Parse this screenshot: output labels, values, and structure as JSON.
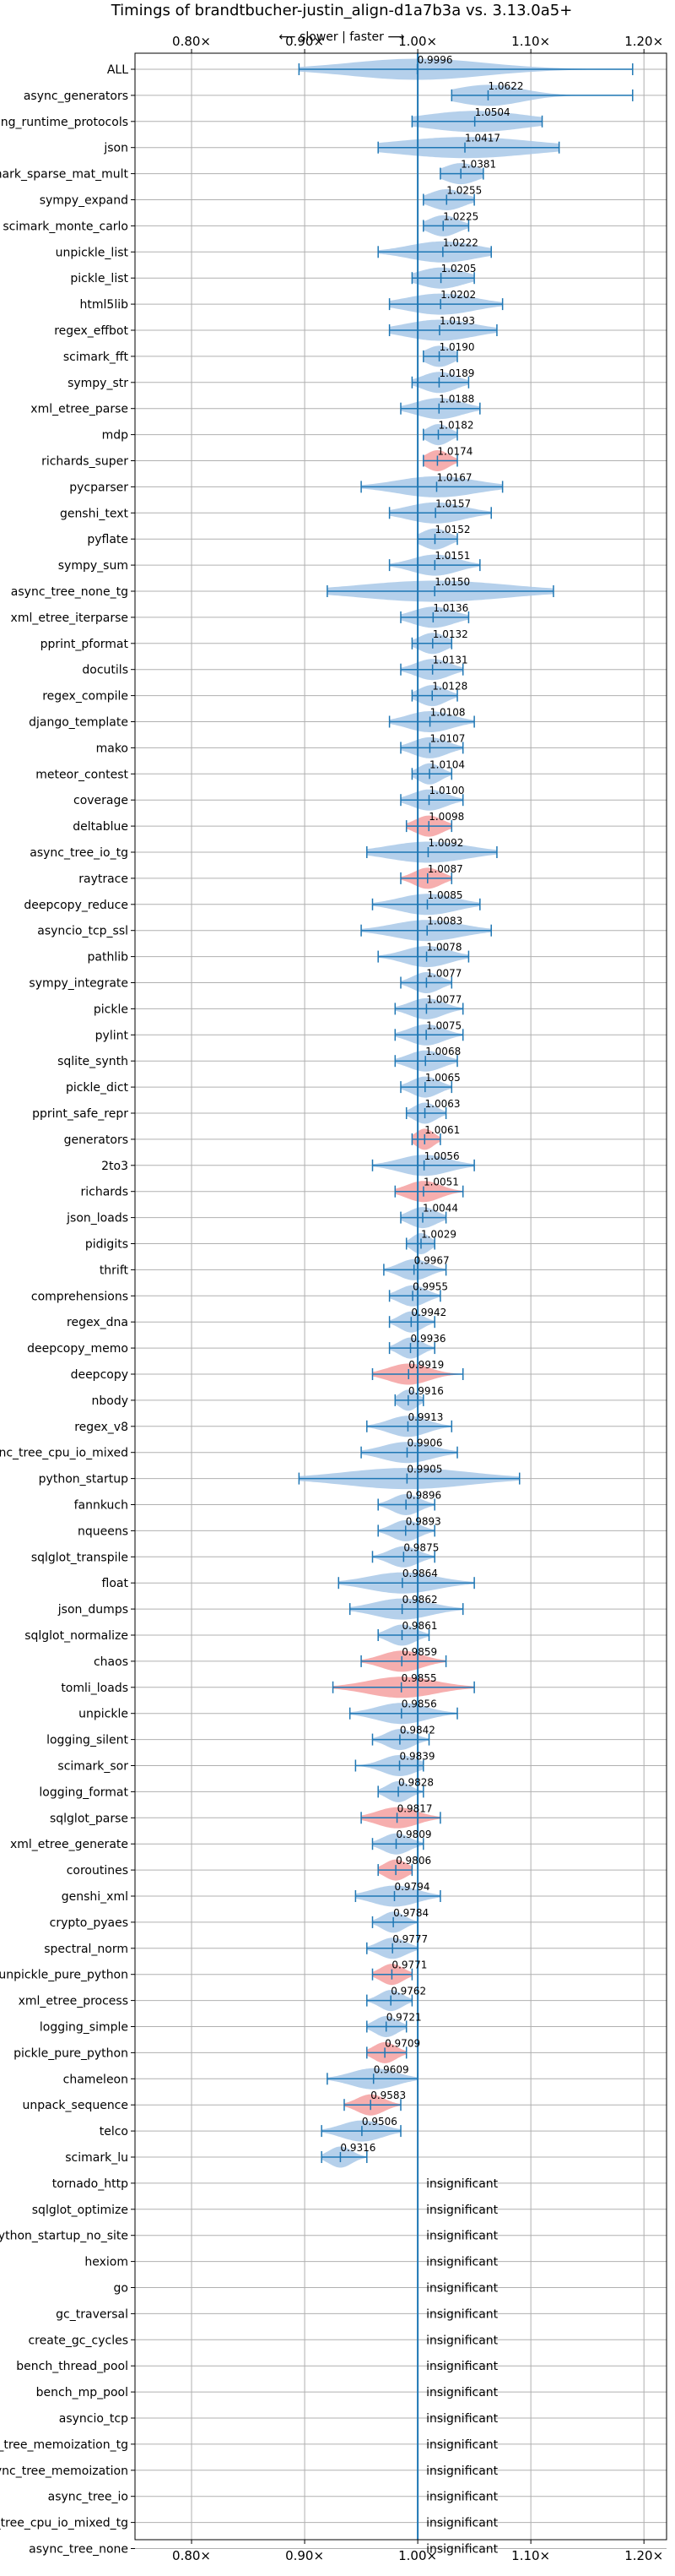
{
  "chart_data": {
    "type": "violin",
    "orientation": "horizontal",
    "title": "Timings of brandtbucher-justin_align-d1a7b3a vs. 3.13.0a5+",
    "subtitle": "⟵ slower | faster ⟶",
    "xlim": [
      0.75,
      1.22
    ],
    "xticks": [
      "0.80×",
      "0.90×",
      "1.00×",
      "1.10×",
      "1.20×"
    ],
    "xtick_values": [
      0.8,
      0.9,
      1.0,
      1.1,
      1.2
    ],
    "grid": true,
    "colors": {
      "normal": "#a8c8e8",
      "significant_slowdown": "#f4a0a0",
      "whisker": "#1f77b4",
      "reference_line": "#1f77b4",
      "grid": "#b0b0b0"
    },
    "insignificant_label": "insignificant",
    "benchmarks": [
      {
        "name": "ALL",
        "value": "0.9996",
        "mean": 0.9996,
        "min": 0.895,
        "max": 1.19,
        "spread": 0.06,
        "color": "normal"
      },
      {
        "name": "async_generators",
        "value": "1.0622",
        "mean": 1.0622,
        "min": 1.03,
        "max": 1.19,
        "spread": 0.03,
        "color": "normal"
      },
      {
        "name": "typing_runtime_protocols",
        "value": "1.0504",
        "mean": 1.0504,
        "min": 0.995,
        "max": 1.11,
        "spread": 0.045,
        "color": "normal"
      },
      {
        "name": "json",
        "value": "1.0417",
        "mean": 1.0417,
        "min": 0.965,
        "max": 1.125,
        "spread": 0.06,
        "color": "normal"
      },
      {
        "name": "scimark_sparse_mat_mult",
        "value": "1.0381",
        "mean": 1.0381,
        "min": 1.02,
        "max": 1.058,
        "spread": 0.015,
        "color": "normal"
      },
      {
        "name": "sympy_expand",
        "value": "1.0255",
        "mean": 1.0255,
        "min": 1.005,
        "max": 1.05,
        "spread": 0.015,
        "color": "normal"
      },
      {
        "name": "scimark_monte_carlo",
        "value": "1.0225",
        "mean": 1.0225,
        "min": 1.005,
        "max": 1.045,
        "spread": 0.013,
        "color": "normal"
      },
      {
        "name": "unpickle_list",
        "value": "1.0222",
        "mean": 1.0222,
        "min": 0.965,
        "max": 1.065,
        "spread": 0.03,
        "color": "normal"
      },
      {
        "name": "pickle_list",
        "value": "1.0205",
        "mean": 1.0205,
        "min": 0.995,
        "max": 1.05,
        "spread": 0.02,
        "color": "normal"
      },
      {
        "name": "html5lib",
        "value": "1.0202",
        "mean": 1.0202,
        "min": 0.975,
        "max": 1.075,
        "spread": 0.03,
        "color": "normal"
      },
      {
        "name": "regex_effbot",
        "value": "1.0193",
        "mean": 1.0193,
        "min": 0.975,
        "max": 1.07,
        "spread": 0.03,
        "color": "normal"
      },
      {
        "name": "scimark_fft",
        "value": "1.0190",
        "mean": 1.019,
        "min": 1.005,
        "max": 1.035,
        "spread": 0.012,
        "color": "normal"
      },
      {
        "name": "sympy_str",
        "value": "1.0189",
        "mean": 1.0189,
        "min": 0.995,
        "max": 1.045,
        "spread": 0.015,
        "color": "normal"
      },
      {
        "name": "xml_etree_parse",
        "value": "1.0188",
        "mean": 1.0188,
        "min": 0.985,
        "max": 1.055,
        "spread": 0.02,
        "color": "normal"
      },
      {
        "name": "mdp",
        "value": "1.0182",
        "mean": 1.0182,
        "min": 1.005,
        "max": 1.035,
        "spread": 0.01,
        "color": "normal"
      },
      {
        "name": "richards_super",
        "value": "1.0174",
        "mean": 1.0174,
        "min": 1.005,
        "max": 1.035,
        "spread": 0.01,
        "color": "significant_slowdown"
      },
      {
        "name": "pycparser",
        "value": "1.0167",
        "mean": 1.0167,
        "min": 0.95,
        "max": 1.075,
        "spread": 0.035,
        "color": "normal"
      },
      {
        "name": "genshi_text",
        "value": "1.0157",
        "mean": 1.0157,
        "min": 0.975,
        "max": 1.065,
        "spread": 0.025,
        "color": "normal"
      },
      {
        "name": "pyflate",
        "value": "1.0152",
        "mean": 1.0152,
        "min": 1.0,
        "max": 1.035,
        "spread": 0.012,
        "color": "normal"
      },
      {
        "name": "sympy_sum",
        "value": "1.0151",
        "mean": 1.0151,
        "min": 0.975,
        "max": 1.055,
        "spread": 0.02,
        "color": "normal"
      },
      {
        "name": "async_tree_none_tg",
        "value": "1.0150",
        "mean": 1.015,
        "min": 0.92,
        "max": 1.12,
        "spread": 0.065,
        "color": "normal"
      },
      {
        "name": "xml_etree_iterparse",
        "value": "1.0136",
        "mean": 1.0136,
        "min": 0.985,
        "max": 1.045,
        "spread": 0.018,
        "color": "normal"
      },
      {
        "name": "pprint_pformat",
        "value": "1.0132",
        "mean": 1.0132,
        "min": 0.995,
        "max": 1.03,
        "spread": 0.012,
        "color": "normal"
      },
      {
        "name": "docutils",
        "value": "1.0131",
        "mean": 1.0131,
        "min": 0.985,
        "max": 1.04,
        "spread": 0.015,
        "color": "normal"
      },
      {
        "name": "regex_compile",
        "value": "1.0128",
        "mean": 1.0128,
        "min": 0.995,
        "max": 1.035,
        "spread": 0.012,
        "color": "normal"
      },
      {
        "name": "django_template",
        "value": "1.0108",
        "mean": 1.0108,
        "min": 0.975,
        "max": 1.05,
        "spread": 0.02,
        "color": "normal"
      },
      {
        "name": "mako",
        "value": "1.0107",
        "mean": 1.0107,
        "min": 0.985,
        "max": 1.04,
        "spread": 0.015,
        "color": "normal"
      },
      {
        "name": "meteor_contest",
        "value": "1.0104",
        "mean": 1.0104,
        "min": 0.995,
        "max": 1.03,
        "spread": 0.01,
        "color": "normal"
      },
      {
        "name": "coverage",
        "value": "1.0100",
        "mean": 1.01,
        "min": 0.985,
        "max": 1.04,
        "spread": 0.015,
        "color": "normal"
      },
      {
        "name": "deltablue",
        "value": "1.0098",
        "mean": 1.0098,
        "min": 0.99,
        "max": 1.03,
        "spread": 0.012,
        "color": "significant_slowdown"
      },
      {
        "name": "async_tree_io_tg",
        "value": "1.0092",
        "mean": 1.0092,
        "min": 0.955,
        "max": 1.07,
        "spread": 0.035,
        "color": "normal"
      },
      {
        "name": "raytrace",
        "value": "1.0087",
        "mean": 1.0087,
        "min": 0.985,
        "max": 1.03,
        "spread": 0.012,
        "color": "significant_slowdown"
      },
      {
        "name": "deepcopy_reduce",
        "value": "1.0085",
        "mean": 1.0085,
        "min": 0.96,
        "max": 1.055,
        "spread": 0.025,
        "color": "normal"
      },
      {
        "name": "asyncio_tcp_ssl",
        "value": "1.0083",
        "mean": 1.0083,
        "min": 0.95,
        "max": 1.065,
        "spread": 0.03,
        "color": "normal"
      },
      {
        "name": "pathlib",
        "value": "1.0078",
        "mean": 1.0078,
        "min": 0.965,
        "max": 1.045,
        "spread": 0.02,
        "color": "normal"
      },
      {
        "name": "sympy_integrate",
        "value": "1.0077",
        "mean": 1.0077,
        "min": 0.985,
        "max": 1.03,
        "spread": 0.012,
        "color": "normal"
      },
      {
        "name": "pickle",
        "value": "1.0077",
        "mean": 1.0077,
        "min": 0.98,
        "max": 1.04,
        "spread": 0.015,
        "color": "normal"
      },
      {
        "name": "pylint",
        "value": "1.0075",
        "mean": 1.0075,
        "min": 0.98,
        "max": 1.04,
        "spread": 0.015,
        "color": "normal"
      },
      {
        "name": "sqlite_synth",
        "value": "1.0068",
        "mean": 1.0068,
        "min": 0.98,
        "max": 1.035,
        "spread": 0.015,
        "color": "normal"
      },
      {
        "name": "pickle_dict",
        "value": "1.0065",
        "mean": 1.0065,
        "min": 0.985,
        "max": 1.03,
        "spread": 0.012,
        "color": "normal"
      },
      {
        "name": "pprint_safe_repr",
        "value": "1.0063",
        "mean": 1.0063,
        "min": 0.99,
        "max": 1.025,
        "spread": 0.01,
        "color": "normal"
      },
      {
        "name": "generators",
        "value": "1.0061",
        "mean": 1.0061,
        "min": 0.995,
        "max": 1.02,
        "spread": 0.008,
        "color": "significant_slowdown"
      },
      {
        "name": "2to3",
        "value": "1.0056",
        "mean": 1.0056,
        "min": 0.96,
        "max": 1.05,
        "spread": 0.022,
        "color": "normal"
      },
      {
        "name": "richards",
        "value": "1.0051",
        "mean": 1.0051,
        "min": 0.98,
        "max": 1.04,
        "spread": 0.015,
        "color": "significant_slowdown"
      },
      {
        "name": "json_loads",
        "value": "1.0044",
        "mean": 1.0044,
        "min": 0.985,
        "max": 1.025,
        "spread": 0.012,
        "color": "normal"
      },
      {
        "name": "pidigits",
        "value": "1.0029",
        "mean": 1.0029,
        "min": 0.99,
        "max": 1.015,
        "spread": 0.008,
        "color": "normal"
      },
      {
        "name": "thrift",
        "value": "0.9967",
        "mean": 0.9967,
        "min": 0.97,
        "max": 1.025,
        "spread": 0.013,
        "color": "normal"
      },
      {
        "name": "comprehensions",
        "value": "0.9955",
        "mean": 0.9955,
        "min": 0.975,
        "max": 1.02,
        "spread": 0.012,
        "color": "normal"
      },
      {
        "name": "regex_dna",
        "value": "0.9942",
        "mean": 0.9942,
        "min": 0.975,
        "max": 1.015,
        "spread": 0.01,
        "color": "normal"
      },
      {
        "name": "deepcopy_memo",
        "value": "0.9936",
        "mean": 0.9936,
        "min": 0.975,
        "max": 1.015,
        "spread": 0.01,
        "color": "normal"
      },
      {
        "name": "deepcopy",
        "value": "0.9919",
        "mean": 0.9919,
        "min": 0.96,
        "max": 1.04,
        "spread": 0.018,
        "color": "significant_slowdown"
      },
      {
        "name": "nbody",
        "value": "0.9916",
        "mean": 0.9916,
        "min": 0.98,
        "max": 1.005,
        "spread": 0.008,
        "color": "normal"
      },
      {
        "name": "regex_v8",
        "value": "0.9913",
        "mean": 0.9913,
        "min": 0.955,
        "max": 1.03,
        "spread": 0.017,
        "color": "normal"
      },
      {
        "name": "async_tree_cpu_io_mixed",
        "value": "0.9906",
        "mean": 0.9906,
        "min": 0.95,
        "max": 1.035,
        "spread": 0.022,
        "color": "normal"
      },
      {
        "name": "python_startup",
        "value": "0.9905",
        "mean": 0.9905,
        "min": 0.895,
        "max": 1.09,
        "spread": 0.055,
        "color": "normal"
      },
      {
        "name": "fannkuch",
        "value": "0.9896",
        "mean": 0.9896,
        "min": 0.965,
        "max": 1.015,
        "spread": 0.012,
        "color": "normal"
      },
      {
        "name": "nqueens",
        "value": "0.9893",
        "mean": 0.9893,
        "min": 0.965,
        "max": 1.015,
        "spread": 0.012,
        "color": "normal"
      },
      {
        "name": "sqlglot_transpile",
        "value": "0.9875",
        "mean": 0.9875,
        "min": 0.96,
        "max": 1.015,
        "spread": 0.013,
        "color": "normal"
      },
      {
        "name": "float",
        "value": "0.9864",
        "mean": 0.9864,
        "min": 0.93,
        "max": 1.05,
        "spread": 0.03,
        "color": "normal"
      },
      {
        "name": "json_dumps",
        "value": "0.9862",
        "mean": 0.9862,
        "min": 0.94,
        "max": 1.04,
        "spread": 0.025,
        "color": "normal"
      },
      {
        "name": "sqlglot_normalize",
        "value": "0.9861",
        "mean": 0.9861,
        "min": 0.965,
        "max": 1.01,
        "spread": 0.012,
        "color": "normal"
      },
      {
        "name": "chaos",
        "value": "0.9859",
        "mean": 0.9859,
        "min": 0.95,
        "max": 1.025,
        "spread": 0.018,
        "color": "significant_slowdown"
      },
      {
        "name": "tomli_loads",
        "value": "0.9855",
        "mean": 0.9855,
        "min": 0.925,
        "max": 1.05,
        "spread": 0.03,
        "color": "significant_slowdown"
      },
      {
        "name": "unpickle",
        "value": "0.9856",
        "mean": 0.9856,
        "min": 0.94,
        "max": 1.035,
        "spread": 0.022,
        "color": "normal"
      },
      {
        "name": "logging_silent",
        "value": "0.9842",
        "mean": 0.9842,
        "min": 0.96,
        "max": 1.01,
        "spread": 0.012,
        "color": "normal"
      },
      {
        "name": "scimark_sor",
        "value": "0.9839",
        "mean": 0.9839,
        "min": 0.945,
        "max": 1.005,
        "spread": 0.015,
        "color": "normal"
      },
      {
        "name": "logging_format",
        "value": "0.9828",
        "mean": 0.9828,
        "min": 0.965,
        "max": 1.005,
        "spread": 0.01,
        "color": "normal"
      },
      {
        "name": "sqlglot_parse",
        "value": "0.9817",
        "mean": 0.9817,
        "min": 0.95,
        "max": 1.02,
        "spread": 0.018,
        "color": "significant_slowdown"
      },
      {
        "name": "xml_etree_generate",
        "value": "0.9809",
        "mean": 0.9809,
        "min": 0.96,
        "max": 1.005,
        "spread": 0.012,
        "color": "normal"
      },
      {
        "name": "coroutines",
        "value": "0.9806",
        "mean": 0.9806,
        "min": 0.965,
        "max": 0.995,
        "spread": 0.01,
        "color": "significant_slowdown"
      },
      {
        "name": "genshi_xml",
        "value": "0.9794",
        "mean": 0.9794,
        "min": 0.945,
        "max": 1.02,
        "spread": 0.02,
        "color": "normal"
      },
      {
        "name": "crypto_pyaes",
        "value": "0.9784",
        "mean": 0.9784,
        "min": 0.96,
        "max": 1.0,
        "spread": 0.01,
        "color": "normal"
      },
      {
        "name": "spectral_norm",
        "value": "0.9777",
        "mean": 0.9777,
        "min": 0.955,
        "max": 1.0,
        "spread": 0.012,
        "color": "normal"
      },
      {
        "name": "unpickle_pure_python",
        "value": "0.9771",
        "mean": 0.9771,
        "min": 0.96,
        "max": 0.995,
        "spread": 0.01,
        "color": "significant_slowdown"
      },
      {
        "name": "xml_etree_process",
        "value": "0.9762",
        "mean": 0.9762,
        "min": 0.955,
        "max": 0.995,
        "spread": 0.01,
        "color": "normal"
      },
      {
        "name": "logging_simple",
        "value": "0.9721",
        "mean": 0.9721,
        "min": 0.955,
        "max": 0.99,
        "spread": 0.01,
        "color": "normal"
      },
      {
        "name": "pickle_pure_python",
        "value": "0.9709",
        "mean": 0.9709,
        "min": 0.955,
        "max": 0.99,
        "spread": 0.01,
        "color": "significant_slowdown"
      },
      {
        "name": "chameleon",
        "value": "0.9609",
        "mean": 0.9609,
        "min": 0.92,
        "max": 1.0,
        "spread": 0.02,
        "color": "normal"
      },
      {
        "name": "unpack_sequence",
        "value": "0.9583",
        "mean": 0.9583,
        "min": 0.935,
        "max": 0.985,
        "spread": 0.012,
        "color": "significant_slowdown"
      },
      {
        "name": "telco",
        "value": "0.9506",
        "mean": 0.9506,
        "min": 0.915,
        "max": 0.985,
        "spread": 0.018,
        "color": "normal"
      },
      {
        "name": "scimark_lu",
        "value": "0.9316",
        "mean": 0.9316,
        "min": 0.915,
        "max": 0.955,
        "spread": 0.01,
        "color": "normal"
      },
      {
        "name": "tornado_http",
        "value": "insignificant",
        "insignificant": true
      },
      {
        "name": "sqlglot_optimize",
        "value": "insignificant",
        "insignificant": true
      },
      {
        "name": "python_startup_no_site",
        "value": "insignificant",
        "insignificant": true
      },
      {
        "name": "hexiom",
        "value": "insignificant",
        "insignificant": true
      },
      {
        "name": "go",
        "value": "insignificant",
        "insignificant": true
      },
      {
        "name": "gc_traversal",
        "value": "insignificant",
        "insignificant": true
      },
      {
        "name": "create_gc_cycles",
        "value": "insignificant",
        "insignificant": true
      },
      {
        "name": "bench_thread_pool",
        "value": "insignificant",
        "insignificant": true
      },
      {
        "name": "bench_mp_pool",
        "value": "insignificant",
        "insignificant": true
      },
      {
        "name": "asyncio_tcp",
        "value": "insignificant",
        "insignificant": true
      },
      {
        "name": "async_tree_memoization_tg",
        "value": "insignificant",
        "insignificant": true
      },
      {
        "name": "async_tree_memoization",
        "value": "insignificant",
        "insignificant": true
      },
      {
        "name": "async_tree_io",
        "value": "insignificant",
        "insignificant": true
      },
      {
        "name": "async_tree_cpu_io_mixed_tg",
        "value": "insignificant",
        "insignificant": true
      },
      {
        "name": "async_tree_none",
        "value": "insignificant",
        "insignificant": true
      }
    ]
  }
}
